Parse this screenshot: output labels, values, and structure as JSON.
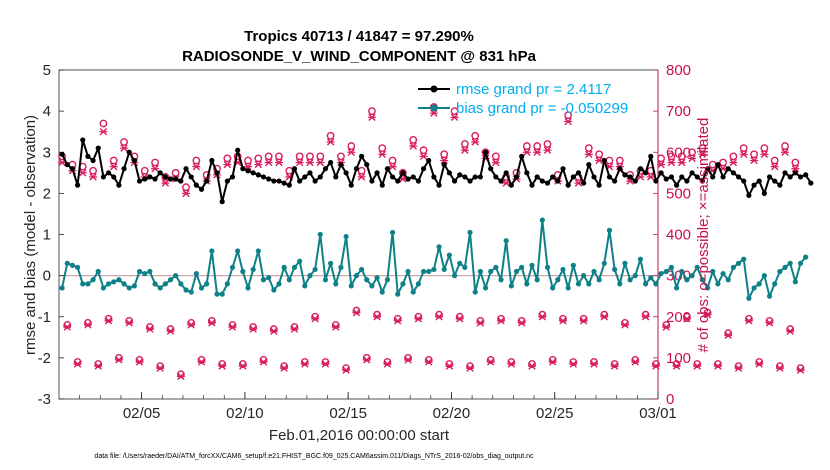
{
  "chart_data": {
    "type": "line",
    "title_line1": "Tropics 40713 / 41847 = 97.290%",
    "title_line2": "RADIOSONDE_V_WIND_COMPONENT @ 831 hPa",
    "xlabel": "Feb.01,2016 00:00:00 start",
    "ylabel_left": "rmse and bias (model - observation)",
    "ylabel_right": "# of obs: o=possible; ×=assimilated",
    "ylim_left": [
      -3,
      5
    ],
    "ylim_right": [
      0,
      800
    ],
    "yticks_left": [
      "-3",
      "-2",
      "-1",
      "0",
      "1",
      "2",
      "3",
      "4",
      "5"
    ],
    "yticks_right": [
      "0",
      "100",
      "200",
      "300",
      "400",
      "500",
      "600",
      "700",
      "800"
    ],
    "xlim_days": [
      1,
      30
    ],
    "xticks": [
      {
        "day": 5,
        "label": "02/05"
      },
      {
        "day": 10,
        "label": "02/10"
      },
      {
        "day": 15,
        "label": "02/15"
      },
      {
        "day": 20,
        "label": "02/20"
      },
      {
        "day": 25,
        "label": "02/25"
      },
      {
        "day": 30,
        "label": "03/01"
      }
    ],
    "time_step_days": 0.25,
    "series": [
      {
        "name": "rmse grand pr = 2.4117",
        "color": "#000000",
        "axis": "left",
        "marker": "circle",
        "values": [
          2.95,
          2.7,
          2.6,
          2.2,
          3.3,
          2.9,
          2.8,
          3.1,
          2.4,
          2.5,
          2.4,
          2.2,
          2.6,
          3.0,
          2.8,
          2.3,
          2.35,
          2.4,
          2.35,
          2.5,
          2.4,
          2.35,
          2.35,
          2.3,
          2.6,
          2.4,
          2.2,
          2.1,
          2.3,
          2.8,
          2.5,
          1.8,
          2.3,
          2.4,
          3.05,
          2.6,
          2.55,
          2.5,
          2.45,
          2.4,
          2.35,
          2.3,
          2.3,
          2.25,
          2.2,
          2.6,
          2.3,
          2.4,
          2.5,
          2.3,
          2.4,
          2.6,
          2.75,
          2.4,
          2.7,
          2.5,
          2.2,
          2.6,
          2.9,
          2.7,
          2.3,
          2.5,
          2.2,
          2.6,
          2.4,
          2.3,
          2.5,
          2.35,
          2.4,
          2.3,
          2.6,
          2.8,
          2.4,
          2.2,
          2.7,
          2.5,
          2.3,
          2.45,
          2.4,
          2.3,
          2.4,
          2.4,
          3.0,
          2.6,
          2.4,
          2.3,
          2.5,
          2.2,
          2.4,
          2.9,
          2.5,
          2.2,
          2.4,
          2.3,
          2.25,
          2.4,
          2.3,
          2.6,
          2.2,
          2.4,
          2.5,
          2.25,
          2.7,
          2.4,
          2.2,
          2.8,
          2.4,
          2.3,
          2.6,
          2.45,
          2.4,
          2.3,
          2.6,
          2.5,
          2.9,
          2.3,
          2.5,
          2.35,
          2.4,
          2.2,
          2.4,
          2.3,
          2.5,
          2.4,
          2.3,
          2.6,
          2.4,
          2.7,
          2.4,
          2.6,
          2.5,
          2.4,
          2.3,
          1.95,
          2.2,
          2.3,
          2.0,
          2.4,
          2.3,
          2.2,
          2.5,
          2.4,
          2.5,
          2.4,
          2.45,
          2.25
        ]
      },
      {
        "name": "bias grand pr = -0.050299",
        "color": "#0e8088",
        "axis": "left",
        "marker": "circle",
        "values": [
          -0.3,
          0.3,
          0.25,
          0.2,
          -0.2,
          -0.2,
          -0.1,
          0.1,
          -0.3,
          -0.2,
          -0.15,
          -0.1,
          -0.2,
          -0.3,
          -0.25,
          0.1,
          0.05,
          0.1,
          -0.2,
          -0.3,
          -0.2,
          -0.1,
          0.0,
          -0.2,
          -0.35,
          -0.4,
          0.05,
          -0.3,
          -0.2,
          0.6,
          -0.45,
          -0.45,
          -0.2,
          0.2,
          0.6,
          0.1,
          -0.3,
          0.15,
          0.6,
          -0.1,
          -0.05,
          -0.35,
          -0.2,
          0.2,
          -0.1,
          0.2,
          0.35,
          -0.25,
          0.0,
          0.15,
          1.0,
          -0.1,
          0.3,
          -0.2,
          0.2,
          0.95,
          -0.25,
          0.0,
          0.15,
          -0.1,
          -0.25,
          -0.05,
          -0.4,
          -0.1,
          1.05,
          -0.45,
          -0.2,
          0.1,
          -0.4,
          -0.2,
          0.1,
          0.1,
          0.15,
          0.7,
          0.15,
          0.5,
          0.0,
          0.3,
          0.2,
          1.05,
          -0.4,
          0.1,
          -0.3,
          0.1,
          0.2,
          -0.1,
          0.85,
          -0.25,
          0.1,
          0.2,
          -0.2,
          0.25,
          -0.1,
          1.35,
          0.2,
          -0.3,
          -0.1,
          0.15,
          -0.3,
          0.25,
          -0.2,
          0.0,
          -0.2,
          0.1,
          -0.1,
          0.3,
          1.1,
          0.15,
          -0.2,
          0.3,
          -0.1,
          0.0,
          0.4,
          -0.2,
          -0.05,
          -0.2,
          0.05,
          0.1,
          0.2,
          -0.3,
          0.1,
          -0.1,
          0.0,
          0.2,
          -0.1,
          -0.3,
          0.1,
          -0.2,
          0.05,
          -0.1,
          0.2,
          0.3,
          0.4,
          -0.55,
          -0.3,
          -0.2,
          0.0,
          -0.5,
          -0.2,
          0.1,
          0.2,
          0.3,
          -0.15,
          0.3,
          0.45
        ]
      },
      {
        "name": "possible obs",
        "color": "#d81b60",
        "axis": "right",
        "marker": "o",
        "values": [
          590,
          180,
          570,
          90,
          565,
          185,
          555,
          85,
          670,
          195,
          580,
          100,
          625,
          190,
          590,
          95,
          555,
          175,
          575,
          80,
          540,
          170,
          550,
          60,
          515,
          185,
          580,
          95,
          545,
          190,
          560,
          85,
          585,
          180,
          590,
          85,
          580,
          175,
          585,
          95,
          590,
          170,
          590,
          80,
          555,
          175,
          590,
          90,
          590,
          200,
          590,
          90,
          640,
          180,
          590,
          75,
          615,
          215,
          555,
          100,
          700,
          205,
          610,
          90,
          580,
          195,
          550,
          100,
          630,
          200,
          605,
          95,
          710,
          205,
          595,
          85,
          700,
          200,
          620,
          80,
          640,
          190,
          600,
          95,
          590,
          195,
          540,
          90,
          550,
          190,
          615,
          85,
          615,
          205,
          620,
          95,
          545,
          195,
          690,
          90,
          540,
          195,
          610,
          90,
          595,
          205,
          580,
          85,
          580,
          185,
          545,
          95,
          555,
          205,
          555,
          85,
          585,
          180,
          590,
          85,
          590,
          200,
          600,
          85,
          610,
          210,
          570,
          85,
          575,
          160,
          590,
          80,
          610,
          195,
          595,
          90,
          610,
          190,
          580,
          80,
          615,
          170,
          575,
          75
        ]
      },
      {
        "name": "assimilated obs",
        "color": "#d81b60",
        "axis": "right",
        "marker": "x",
        "values": [
          575,
          175,
          555,
          85,
          550,
          180,
          540,
          80,
          650,
          190,
          565,
          95,
          610,
          185,
          575,
          90,
          540,
          170,
          560,
          75,
          525,
          165,
          535,
          55,
          500,
          180,
          565,
          90,
          530,
          185,
          545,
          80,
          570,
          175,
          575,
          80,
          565,
          170,
          570,
          90,
          575,
          165,
          575,
          75,
          540,
          170,
          575,
          85,
          575,
          195,
          575,
          85,
          625,
          175,
          575,
          70,
          600,
          210,
          540,
          95,
          685,
          200,
          595,
          85,
          565,
          190,
          535,
          95,
          615,
          195,
          590,
          90,
          695,
          200,
          580,
          80,
          685,
          195,
          605,
          75,
          625,
          185,
          585,
          90,
          575,
          190,
          525,
          85,
          535,
          185,
          600,
          80,
          600,
          200,
          605,
          90,
          530,
          190,
          675,
          85,
          525,
          190,
          595,
          85,
          580,
          200,
          565,
          80,
          565,
          180,
          530,
          90,
          540,
          200,
          540,
          80,
          570,
          175,
          575,
          80,
          575,
          195,
          585,
          80,
          595,
          205,
          555,
          80,
          560,
          155,
          575,
          75,
          595,
          190,
          580,
          85,
          595,
          185,
          565,
          75,
          600,
          165,
          560,
          70
        ]
      }
    ],
    "legend": {
      "location": "top-right",
      "entries": [
        "rmse grand pr = 2.4117",
        "bias grand pr = -0.050299"
      ]
    },
    "zero_line_color": "#cfa8a8"
  },
  "footnote": "data file: /Users/raeder/DAI/ATM_forcXX/CAM6_setup/f.e21.FHIST_BGC.f09_025.CAM6assim.011/Diags_NTrS_2016-02/obs_diag_output.nc",
  "colors": {
    "rmse": "#000000",
    "bias": "#0e8088",
    "obs_count": "#d81b60",
    "legend_text": "#00aeef"
  }
}
